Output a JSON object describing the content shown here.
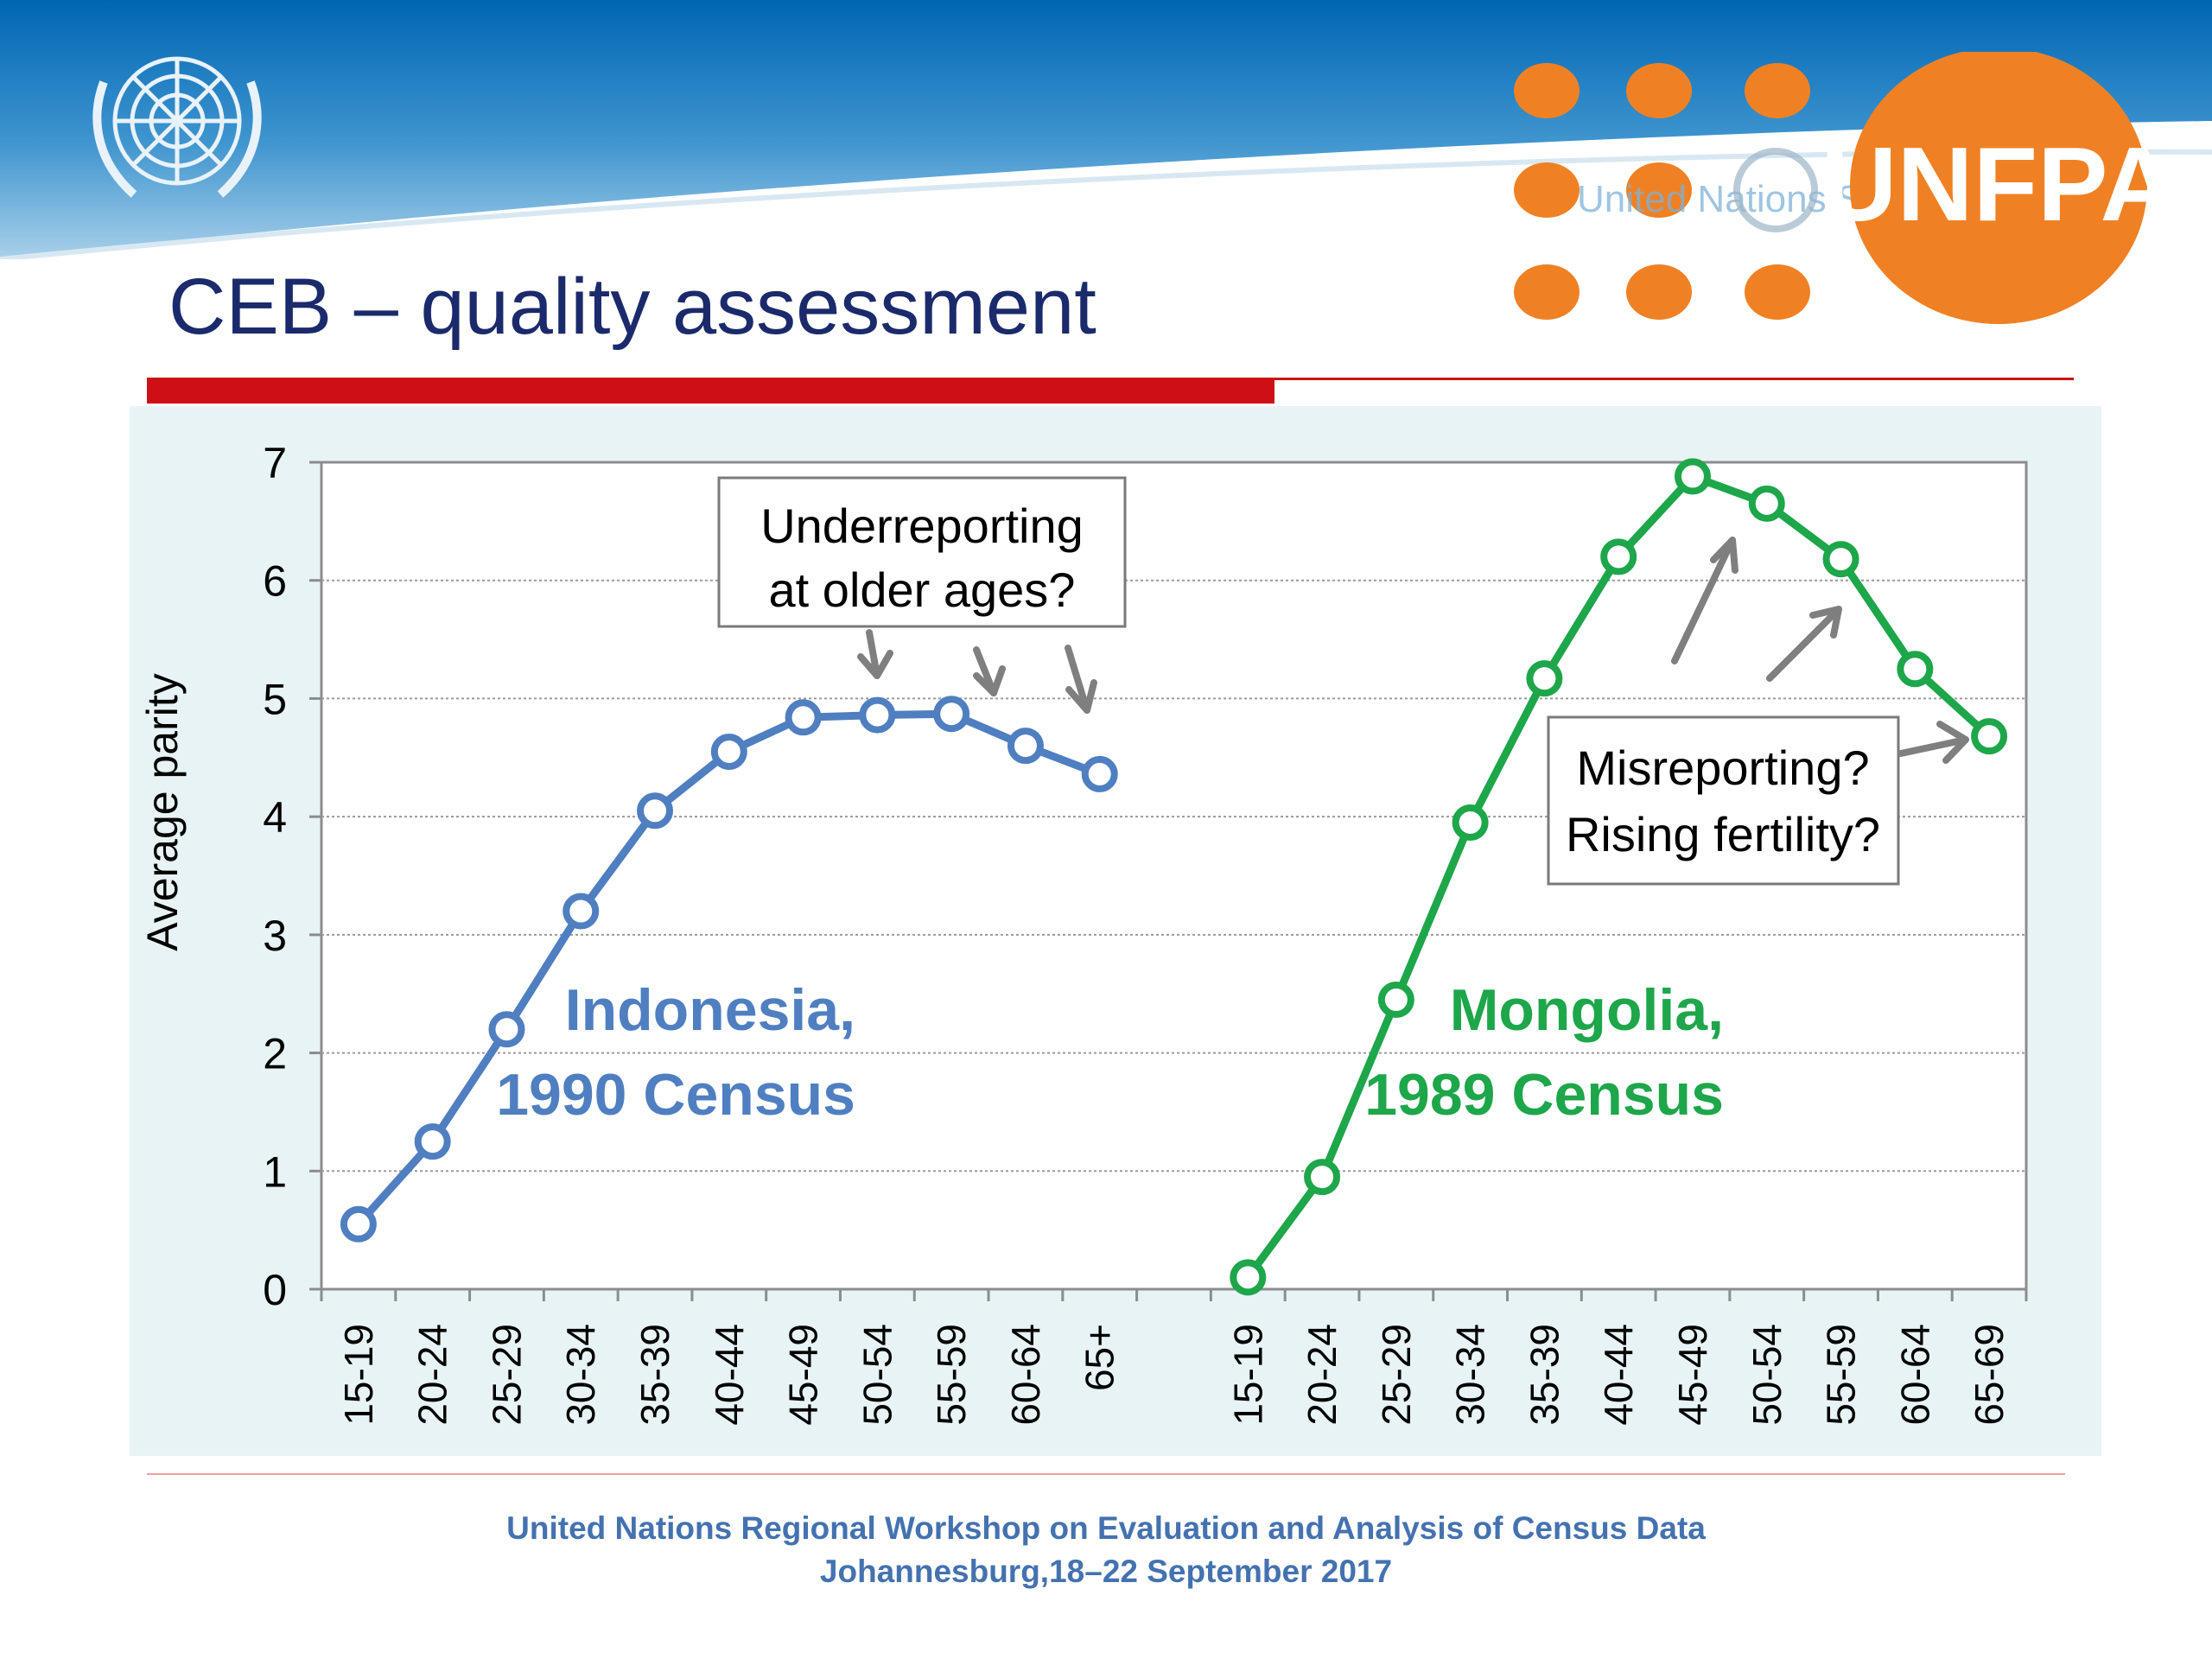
{
  "title": "CEB – quality assessment",
  "logo": {
    "unfpa_text": "UNFPA",
    "un_statistics_text": "United Nations Statistics"
  },
  "footer": {
    "line1": "United Nations Regional Workshop on Evaluation and Analysis of Census Data",
    "line2": "Johannesburg,18–22 September 2017"
  },
  "colors": {
    "title": "#1b2a6b",
    "accent_red": "#cc1016",
    "unfpa_orange": "#ef8124",
    "indonesia": "#4f7fc0",
    "mongolia": "#1ea64a",
    "panel_bg": "#e8f3f6",
    "footer_text": "#4472b0"
  },
  "chart_data": {
    "type": "line",
    "ylabel": "Average parity",
    "xlabel": "",
    "ylim": [
      0,
      7
    ],
    "yticks": [
      "0",
      "1",
      "2",
      "3",
      "4",
      "5",
      "6",
      "7"
    ],
    "grid": true,
    "series": [
      {
        "name": "Indonesia, 1990 Census",
        "label_lines": [
          "Indonesia,",
          "1990 Census"
        ],
        "color": "#4f7fc0",
        "categories": [
          "15-19",
          "20-24",
          "25-29",
          "30-34",
          "35-39",
          "40-44",
          "45-49",
          "50-54",
          "55-59",
          "60-64",
          "65+"
        ],
        "values": [
          0.55,
          1.25,
          2.2,
          3.2,
          4.05,
          4.55,
          4.84,
          4.86,
          4.87,
          4.6,
          4.36
        ]
      },
      {
        "name": "Mongolia, 1989 Census",
        "label_lines": [
          "Mongolia,",
          "1989 Census"
        ],
        "color": "#1ea64a",
        "categories": [
          "15-19",
          "20-24",
          "25-29",
          "30-34",
          "35-39",
          "40-44",
          "45-49",
          "50-54",
          "55-59",
          "60-64",
          "65-69"
        ],
        "values": [
          0.1,
          0.95,
          2.45,
          3.95,
          5.17,
          6.2,
          6.88,
          6.65,
          6.18,
          5.25,
          4.68
        ]
      }
    ],
    "annotations": [
      {
        "lines": [
          "Underreporting",
          "at older ages?"
        ]
      },
      {
        "lines": [
          "Misreporting?",
          "Rising fertility?"
        ]
      }
    ]
  }
}
